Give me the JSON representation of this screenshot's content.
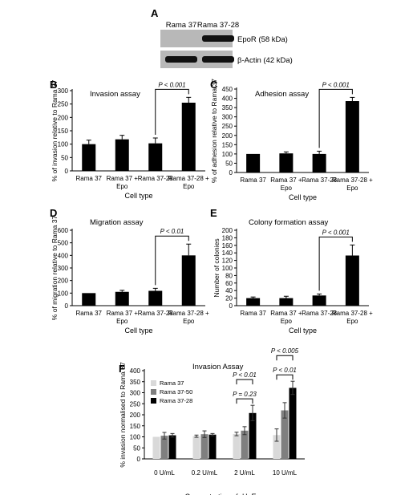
{
  "colors": {
    "bar": "#000000",
    "axis": "#000000",
    "blot_bg": "#b8b8b8",
    "band": "#111111",
    "series": [
      "#d9d9d9",
      "#7f7f7f",
      "#000000"
    ]
  },
  "panel_A": {
    "letter": "A",
    "lanes": [
      "Rama 37",
      "Rama 37-28"
    ],
    "blots": [
      {
        "label": "EpoR (58 kDa)",
        "band_intensity": [
          0.05,
          1.0
        ]
      },
      {
        "label": "β-Actin (42 kDa)",
        "band_intensity": [
          1.0,
          1.0
        ]
      }
    ]
  },
  "chart_data": [
    {
      "panel": "B",
      "type": "bar",
      "title": "Invasion assay",
      "categories": [
        "Rama 37",
        "Rama 37 + Epo",
        "Rama 37-28",
        "Rama 37-28 + Epo"
      ],
      "values": [
        100,
        118,
        103,
        255
      ],
      "errors": [
        15,
        15,
        20,
        20
      ],
      "ylim": [
        0,
        300
      ],
      "yticks": [
        0,
        50,
        100,
        150,
        200,
        250,
        300
      ],
      "xlabel": "Cell type",
      "ylabel": "% of invasion relative to Rama 37",
      "significance": [
        {
          "from": 2,
          "to": 3,
          "text": "P < 0.001"
        }
      ]
    },
    {
      "panel": "C",
      "type": "bar",
      "title": "Adhesion assay",
      "categories": [
        "Rama 37",
        "Rama 37 + Epo",
        "Rama 37-28",
        "Rama 37-28 + Epo"
      ],
      "values": [
        100,
        103,
        100,
        385
      ],
      "errors": [
        0,
        8,
        15,
        20
      ],
      "ylim": [
        0,
        450
      ],
      "yticks": [
        0,
        50,
        100,
        150,
        200,
        250,
        300,
        350,
        400,
        450
      ],
      "xlabel": "Cell type",
      "ylabel": "% of adhesion relative to Rama 37",
      "significance": [
        {
          "from": 2,
          "to": 3,
          "text": "P < 0.001"
        }
      ]
    },
    {
      "panel": "D",
      "type": "bar",
      "title": "Migration assay",
      "categories": [
        "Rama 37",
        "Rama 37 + Epo",
        "Rama 37-28",
        "Rama 37-28 + Epo"
      ],
      "values": [
        100,
        110,
        118,
        400
      ],
      "errors": [
        0,
        12,
        20,
        90
      ],
      "ylim": [
        0,
        600
      ],
      "yticks": [
        0,
        100,
        200,
        300,
        400,
        500,
        600
      ],
      "xlabel": "Cell type",
      "ylabel": "% of migration relative to Rama 37",
      "significance": [
        {
          "from": 2,
          "to": 3,
          "text": "P < 0.01"
        }
      ]
    },
    {
      "panel": "E",
      "type": "bar",
      "title": "Colony formation assay",
      "categories": [
        "Rama 37",
        "Rama 37 + Epo",
        "Rama 37-28",
        "Rama 37-28 + Epo"
      ],
      "values": [
        20,
        20,
        27,
        133
      ],
      "errors": [
        3,
        5,
        4,
        28
      ],
      "ylim": [
        0,
        200
      ],
      "yticks": [
        0,
        20,
        40,
        60,
        80,
        100,
        120,
        140,
        160,
        180,
        200
      ],
      "xlabel": "Cell type",
      "ylabel": "Number of colonies",
      "significance": [
        {
          "from": 2,
          "to": 3,
          "text": "P < 0.001"
        }
      ]
    },
    {
      "panel": "F",
      "type": "bar",
      "title": "Invasion Assay",
      "categories": [
        "0 U/mL",
        "0.2 U/mL",
        "2 U/mL",
        "10 U/mL"
      ],
      "series": [
        {
          "name": "Rama 37",
          "values": [
            100,
            103,
            113,
            108
          ],
          "errors": [
            0,
            5,
            8,
            28
          ]
        },
        {
          "name": "Rama 37-50",
          "values": [
            105,
            112,
            128,
            220
          ],
          "errors": [
            15,
            15,
            18,
            35
          ]
        },
        {
          "name": "Rama 37-28",
          "values": [
            107,
            110,
            208,
            322
          ],
          "errors": [
            8,
            5,
            35,
            30
          ]
        }
      ],
      "ylim": [
        0,
        400
      ],
      "yticks": [
        0,
        50,
        100,
        150,
        200,
        250,
        300,
        350,
        400
      ],
      "xlabel": "Concentration of rHuEpo",
      "ylabel": "% invasion normalised to Rama 37",
      "significance": [
        {
          "group": 2,
          "from": 0,
          "to": 2,
          "text": "P = 0.23",
          "level": 1
        },
        {
          "group": 2,
          "from": 0,
          "to": 2,
          "text": "P < 0.01",
          "level": 2
        },
        {
          "group": 3,
          "from": 0,
          "to": 2,
          "text": "P < 0.01",
          "level": 1
        },
        {
          "group": 3,
          "from": 0,
          "to": 2,
          "text": "P < 0.005",
          "level": 2
        }
      ]
    }
  ]
}
